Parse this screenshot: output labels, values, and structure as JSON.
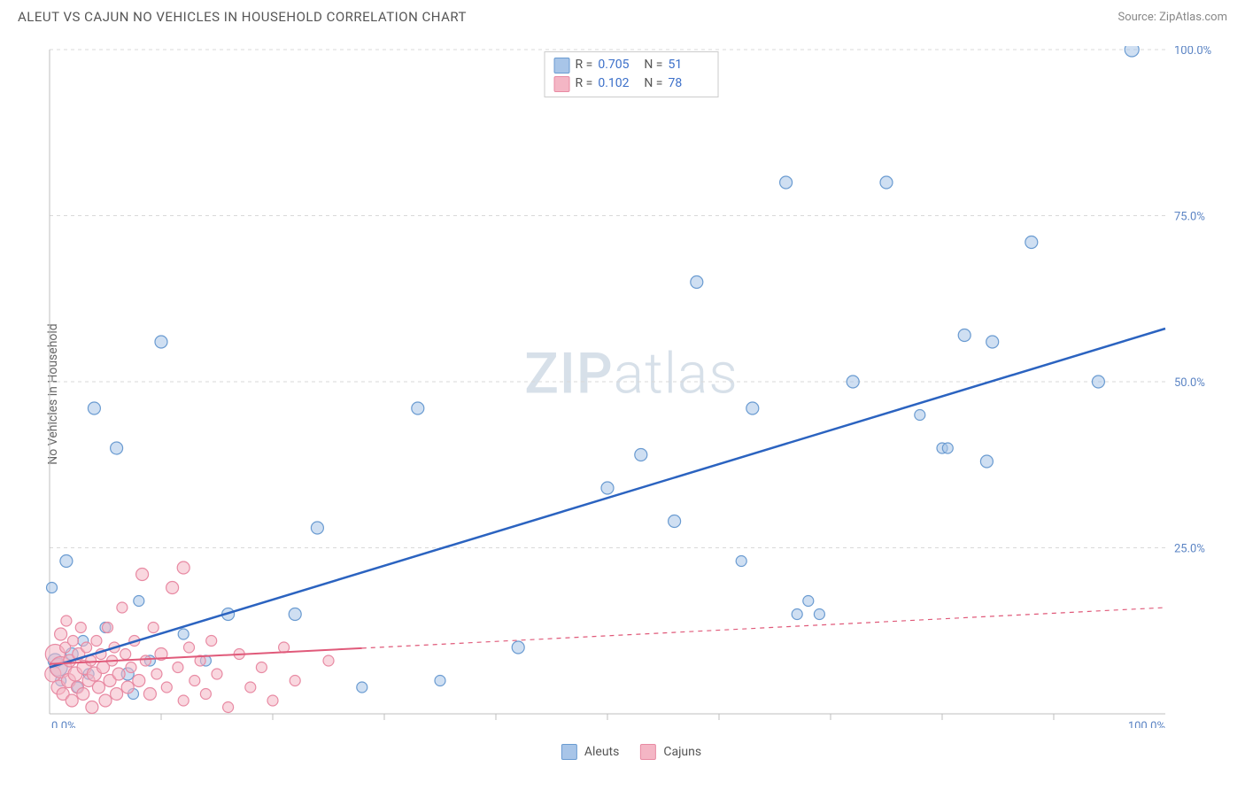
{
  "header": {
    "title": "ALEUT VS CAJUN NO VEHICLES IN HOUSEHOLD CORRELATION CHART",
    "source": "Source: ZipAtlas.com"
  },
  "watermark": {
    "zip": "ZIP",
    "atlas": "atlas"
  },
  "chart": {
    "type": "scatter",
    "ylabel": "No Vehicles in Household",
    "xlim": [
      0,
      100
    ],
    "ylim": [
      0,
      100
    ],
    "xtick_major": [
      0,
      100
    ],
    "xtick_minor": [
      10,
      20,
      30,
      40,
      50,
      60,
      70,
      80,
      90
    ],
    "ytick_major": [
      25,
      50,
      75,
      100
    ],
    "xtick_labels": [
      "0.0%",
      "100.0%"
    ],
    "ytick_labels": [
      "25.0%",
      "50.0%",
      "75.0%",
      "100.0%"
    ],
    "background_color": "#ffffff",
    "grid_color": "#d9d9d9",
    "grid_dash": "4,4",
    "axis_color": "#bfbfbf",
    "tick_label_color": "#5b84c4",
    "label_color": "#666666",
    "label_fontsize": 14,
    "tick_fontsize": 13
  },
  "series": [
    {
      "name": "Aleuts",
      "R": "0.705",
      "N": "51",
      "fill": "#a8c5e8",
      "stroke": "#6a9bd1",
      "fill_opacity": 0.55,
      "line_color": "#2b63c0",
      "line_width": 2.5,
      "trend": {
        "x1": 0,
        "y1": 7,
        "x2": 100,
        "y2": 58,
        "solid_until_x": 100
      },
      "points": [
        {
          "x": 0.2,
          "y": 19,
          "r": 6
        },
        {
          "x": 0.5,
          "y": 8,
          "r": 8
        },
        {
          "x": 0.8,
          "y": 7,
          "r": 10
        },
        {
          "x": 1,
          "y": 5,
          "r": 6
        },
        {
          "x": 1.5,
          "y": 23,
          "r": 7
        },
        {
          "x": 2,
          "y": 9,
          "r": 7
        },
        {
          "x": 2.5,
          "y": 4,
          "r": 6
        },
        {
          "x": 3,
          "y": 11,
          "r": 6
        },
        {
          "x": 3.5,
          "y": 6,
          "r": 6
        },
        {
          "x": 4,
          "y": 46,
          "r": 7
        },
        {
          "x": 5,
          "y": 13,
          "r": 6
        },
        {
          "x": 6,
          "y": 40,
          "r": 7
        },
        {
          "x": 7,
          "y": 6,
          "r": 7
        },
        {
          "x": 7.5,
          "y": 3,
          "r": 6
        },
        {
          "x": 8,
          "y": 17,
          "r": 6
        },
        {
          "x": 9,
          "y": 8,
          "r": 6
        },
        {
          "x": 10,
          "y": 56,
          "r": 7
        },
        {
          "x": 12,
          "y": 12,
          "r": 6
        },
        {
          "x": 14,
          "y": 8,
          "r": 6
        },
        {
          "x": 16,
          "y": 15,
          "r": 7
        },
        {
          "x": 22,
          "y": 15,
          "r": 7
        },
        {
          "x": 24,
          "y": 28,
          "r": 7
        },
        {
          "x": 28,
          "y": 4,
          "r": 6
        },
        {
          "x": 33,
          "y": 46,
          "r": 7
        },
        {
          "x": 35,
          "y": 5,
          "r": 6
        },
        {
          "x": 42,
          "y": 10,
          "r": 7
        },
        {
          "x": 50,
          "y": 34,
          "r": 7
        },
        {
          "x": 53,
          "y": 39,
          "r": 7
        },
        {
          "x": 56,
          "y": 29,
          "r": 7
        },
        {
          "x": 58,
          "y": 65,
          "r": 7
        },
        {
          "x": 62,
          "y": 23,
          "r": 6
        },
        {
          "x": 63,
          "y": 46,
          "r": 7
        },
        {
          "x": 66,
          "y": 80,
          "r": 7
        },
        {
          "x": 67,
          "y": 15,
          "r": 6
        },
        {
          "x": 68,
          "y": 17,
          "r": 6
        },
        {
          "x": 69,
          "y": 15,
          "r": 6
        },
        {
          "x": 72,
          "y": 50,
          "r": 7
        },
        {
          "x": 75,
          "y": 80,
          "r": 7
        },
        {
          "x": 78,
          "y": 45,
          "r": 6
        },
        {
          "x": 80,
          "y": 40,
          "r": 6
        },
        {
          "x": 80.5,
          "y": 40,
          "r": 6
        },
        {
          "x": 82,
          "y": 57,
          "r": 7
        },
        {
          "x": 84,
          "y": 38,
          "r": 7
        },
        {
          "x": 84.5,
          "y": 56,
          "r": 7
        },
        {
          "x": 88,
          "y": 71,
          "r": 7
        },
        {
          "x": 94,
          "y": 50,
          "r": 7
        },
        {
          "x": 97,
          "y": 100,
          "r": 8
        }
      ]
    },
    {
      "name": "Cajuns",
      "R": "0.102",
      "N": "78",
      "fill": "#f4b6c5",
      "stroke": "#e88aa3",
      "fill_opacity": 0.55,
      "line_color": "#e05a7a",
      "line_width": 2,
      "trend": {
        "x1": 0,
        "y1": 7.5,
        "x2": 100,
        "y2": 16,
        "solid_until_x": 28
      },
      "points": [
        {
          "x": 0.3,
          "y": 6,
          "r": 9
        },
        {
          "x": 0.5,
          "y": 9,
          "r": 11
        },
        {
          "x": 0.8,
          "y": 4,
          "r": 8
        },
        {
          "x": 1,
          "y": 12,
          "r": 7
        },
        {
          "x": 1,
          "y": 7,
          "r": 12
        },
        {
          "x": 1.2,
          "y": 3,
          "r": 7
        },
        {
          "x": 1.4,
          "y": 10,
          "r": 6
        },
        {
          "x": 1.5,
          "y": 14,
          "r": 6
        },
        {
          "x": 1.7,
          "y": 5,
          "r": 8
        },
        {
          "x": 1.8,
          "y": 8,
          "r": 7
        },
        {
          "x": 2,
          "y": 2,
          "r": 7
        },
        {
          "x": 2.1,
          "y": 11,
          "r": 6
        },
        {
          "x": 2.3,
          "y": 6,
          "r": 8
        },
        {
          "x": 2.5,
          "y": 4,
          "r": 7
        },
        {
          "x": 2.6,
          "y": 9,
          "r": 7
        },
        {
          "x": 2.8,
          "y": 13,
          "r": 6
        },
        {
          "x": 3,
          "y": 3,
          "r": 7
        },
        {
          "x": 3.1,
          "y": 7,
          "r": 8
        },
        {
          "x": 3.3,
          "y": 10,
          "r": 6
        },
        {
          "x": 3.5,
          "y": 5,
          "r": 7
        },
        {
          "x": 3.7,
          "y": 8,
          "r": 6
        },
        {
          "x": 3.8,
          "y": 1,
          "r": 7
        },
        {
          "x": 4,
          "y": 6,
          "r": 8
        },
        {
          "x": 4.2,
          "y": 11,
          "r": 6
        },
        {
          "x": 4.4,
          "y": 4,
          "r": 7
        },
        {
          "x": 4.6,
          "y": 9,
          "r": 6
        },
        {
          "x": 4.8,
          "y": 7,
          "r": 7
        },
        {
          "x": 5,
          "y": 2,
          "r": 7
        },
        {
          "x": 5.2,
          "y": 13,
          "r": 6
        },
        {
          "x": 5.4,
          "y": 5,
          "r": 7
        },
        {
          "x": 5.6,
          "y": 8,
          "r": 6
        },
        {
          "x": 5.8,
          "y": 10,
          "r": 6
        },
        {
          "x": 6,
          "y": 3,
          "r": 7
        },
        {
          "x": 6.2,
          "y": 6,
          "r": 7
        },
        {
          "x": 6.5,
          "y": 16,
          "r": 6
        },
        {
          "x": 6.8,
          "y": 9,
          "r": 6
        },
        {
          "x": 7,
          "y": 4,
          "r": 7
        },
        {
          "x": 7.3,
          "y": 7,
          "r": 6
        },
        {
          "x": 7.6,
          "y": 11,
          "r": 6
        },
        {
          "x": 8,
          "y": 5,
          "r": 7
        },
        {
          "x": 8.3,
          "y": 21,
          "r": 7
        },
        {
          "x": 8.6,
          "y": 8,
          "r": 6
        },
        {
          "x": 9,
          "y": 3,
          "r": 7
        },
        {
          "x": 9.3,
          "y": 13,
          "r": 6
        },
        {
          "x": 9.6,
          "y": 6,
          "r": 6
        },
        {
          "x": 10,
          "y": 9,
          "r": 7
        },
        {
          "x": 10.5,
          "y": 4,
          "r": 6
        },
        {
          "x": 11,
          "y": 19,
          "r": 7
        },
        {
          "x": 11.5,
          "y": 7,
          "r": 6
        },
        {
          "x": 12,
          "y": 2,
          "r": 6
        },
        {
          "x": 12,
          "y": 22,
          "r": 7
        },
        {
          "x": 12.5,
          "y": 10,
          "r": 6
        },
        {
          "x": 13,
          "y": 5,
          "r": 6
        },
        {
          "x": 13.5,
          "y": 8,
          "r": 6
        },
        {
          "x": 14,
          "y": 3,
          "r": 6
        },
        {
          "x": 14.5,
          "y": 11,
          "r": 6
        },
        {
          "x": 15,
          "y": 6,
          "r": 6
        },
        {
          "x": 16,
          "y": 1,
          "r": 6
        },
        {
          "x": 17,
          "y": 9,
          "r": 6
        },
        {
          "x": 18,
          "y": 4,
          "r": 6
        },
        {
          "x": 19,
          "y": 7,
          "r": 6
        },
        {
          "x": 20,
          "y": 2,
          "r": 6
        },
        {
          "x": 21,
          "y": 10,
          "r": 6
        },
        {
          "x": 22,
          "y": 5,
          "r": 6
        },
        {
          "x": 25,
          "y": 8,
          "r": 6
        }
      ]
    }
  ],
  "legend_top": {
    "rows": [
      {
        "swatch_fill": "#a8c5e8",
        "swatch_stroke": "#6a9bd1",
        "r_label": "R =",
        "r_value": "0.705",
        "n_label": "N =",
        "n_value": "51"
      },
      {
        "swatch_fill": "#f4b6c5",
        "swatch_stroke": "#e88aa3",
        "r_label": "R =",
        "r_value": "0.102",
        "n_label": "N =",
        "n_value": "78"
      }
    ]
  },
  "legend_bottom": {
    "items": [
      {
        "swatch_fill": "#a8c5e8",
        "swatch_stroke": "#6a9bd1",
        "label": "Aleuts"
      },
      {
        "swatch_fill": "#f4b6c5",
        "swatch_stroke": "#e88aa3",
        "label": "Cajuns"
      }
    ]
  }
}
